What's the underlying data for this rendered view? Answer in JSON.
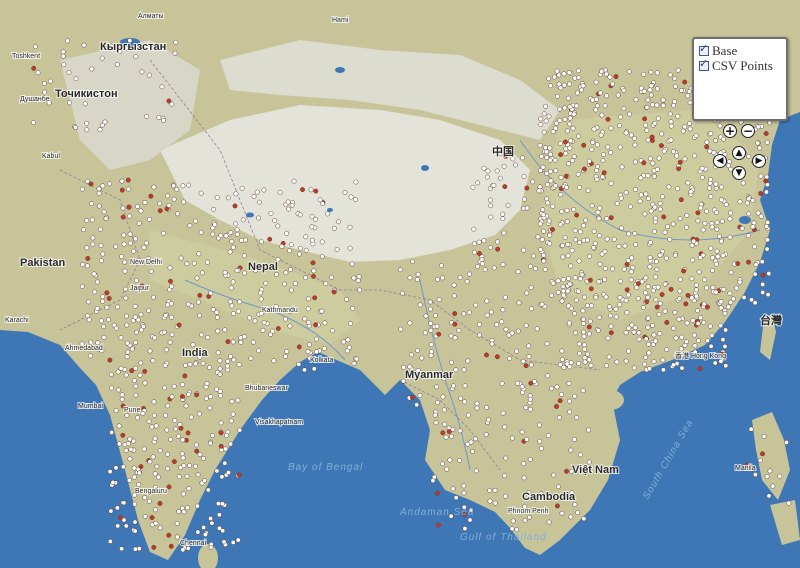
{
  "layers": [
    {
      "label": "Base",
      "checked": true
    },
    {
      "label": "CSV Points",
      "checked": true
    }
  ],
  "controls": {
    "zoom_in": "+",
    "zoom_out": "−",
    "pan_up": "▲",
    "pan_down": "▼",
    "pan_left": "◀",
    "pan_right": "▶"
  },
  "map_labels": {
    "countries": [
      "Кыргызстан",
      "Точикистон",
      "Pakistan",
      "India",
      "Nepal",
      "Myanmar",
      "中国",
      "Cambodia",
      "Việt Nam",
      "台灣"
    ],
    "cities": [
      "Алматы",
      "Toshkent",
      "Душанбе",
      "Kabul",
      "New Delhi",
      "Jaipur",
      "Kathmandu",
      "Kolkata",
      "Bhubaneswar",
      "Mumbai",
      "Pune",
      "Bengaluru",
      "Chennai",
      "Visakhapatnam",
      "Hami",
      "香港 Hong Kong",
      "Manila",
      "Phnom Penh",
      "Karachi",
      "Ahmedabad"
    ],
    "seas": [
      "Bay of Bengal",
      "Andaman Sea",
      "Gulf of Thailand",
      "South China Sea"
    ]
  },
  "colors": {
    "water": "#3f77b6",
    "land": "#c9c59a",
    "highland": "#e4e4dc",
    "point_white": "#ffffff",
    "point_red": "#c0392b"
  }
}
